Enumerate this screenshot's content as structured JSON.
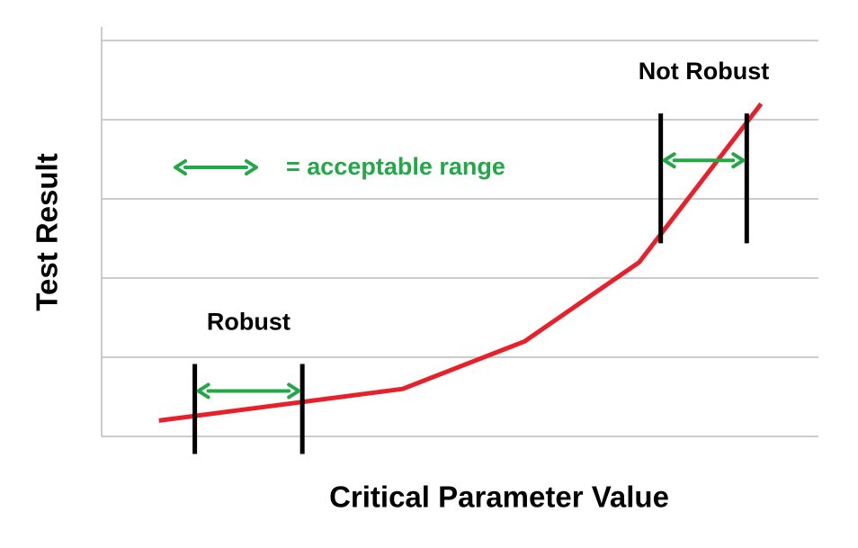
{
  "chart_data": {
    "type": "line",
    "x_label": "Critical Parameter Value",
    "y_label": "Test Result",
    "x": [
      0.8,
      4.2,
      5.9,
      7.5,
      9.2
    ],
    "values": [
      0.2,
      0.6,
      1.2,
      2.2,
      4.2
    ],
    "color": "#e8202a",
    "xlim": [
      0,
      10
    ],
    "ylim": [
      0,
      5
    ],
    "yticks": [
      0,
      1,
      2,
      3,
      4,
      5
    ],
    "grid": true,
    "tick_labels": false,
    "range_color": "#22a846",
    "legend_text": "= acceptable range",
    "ranges": [
      {
        "label": "Robust",
        "x": [
          1.3,
          2.8
        ]
      },
      {
        "label": "Not Robust",
        "x": [
          7.8,
          9.0
        ]
      }
    ]
  }
}
